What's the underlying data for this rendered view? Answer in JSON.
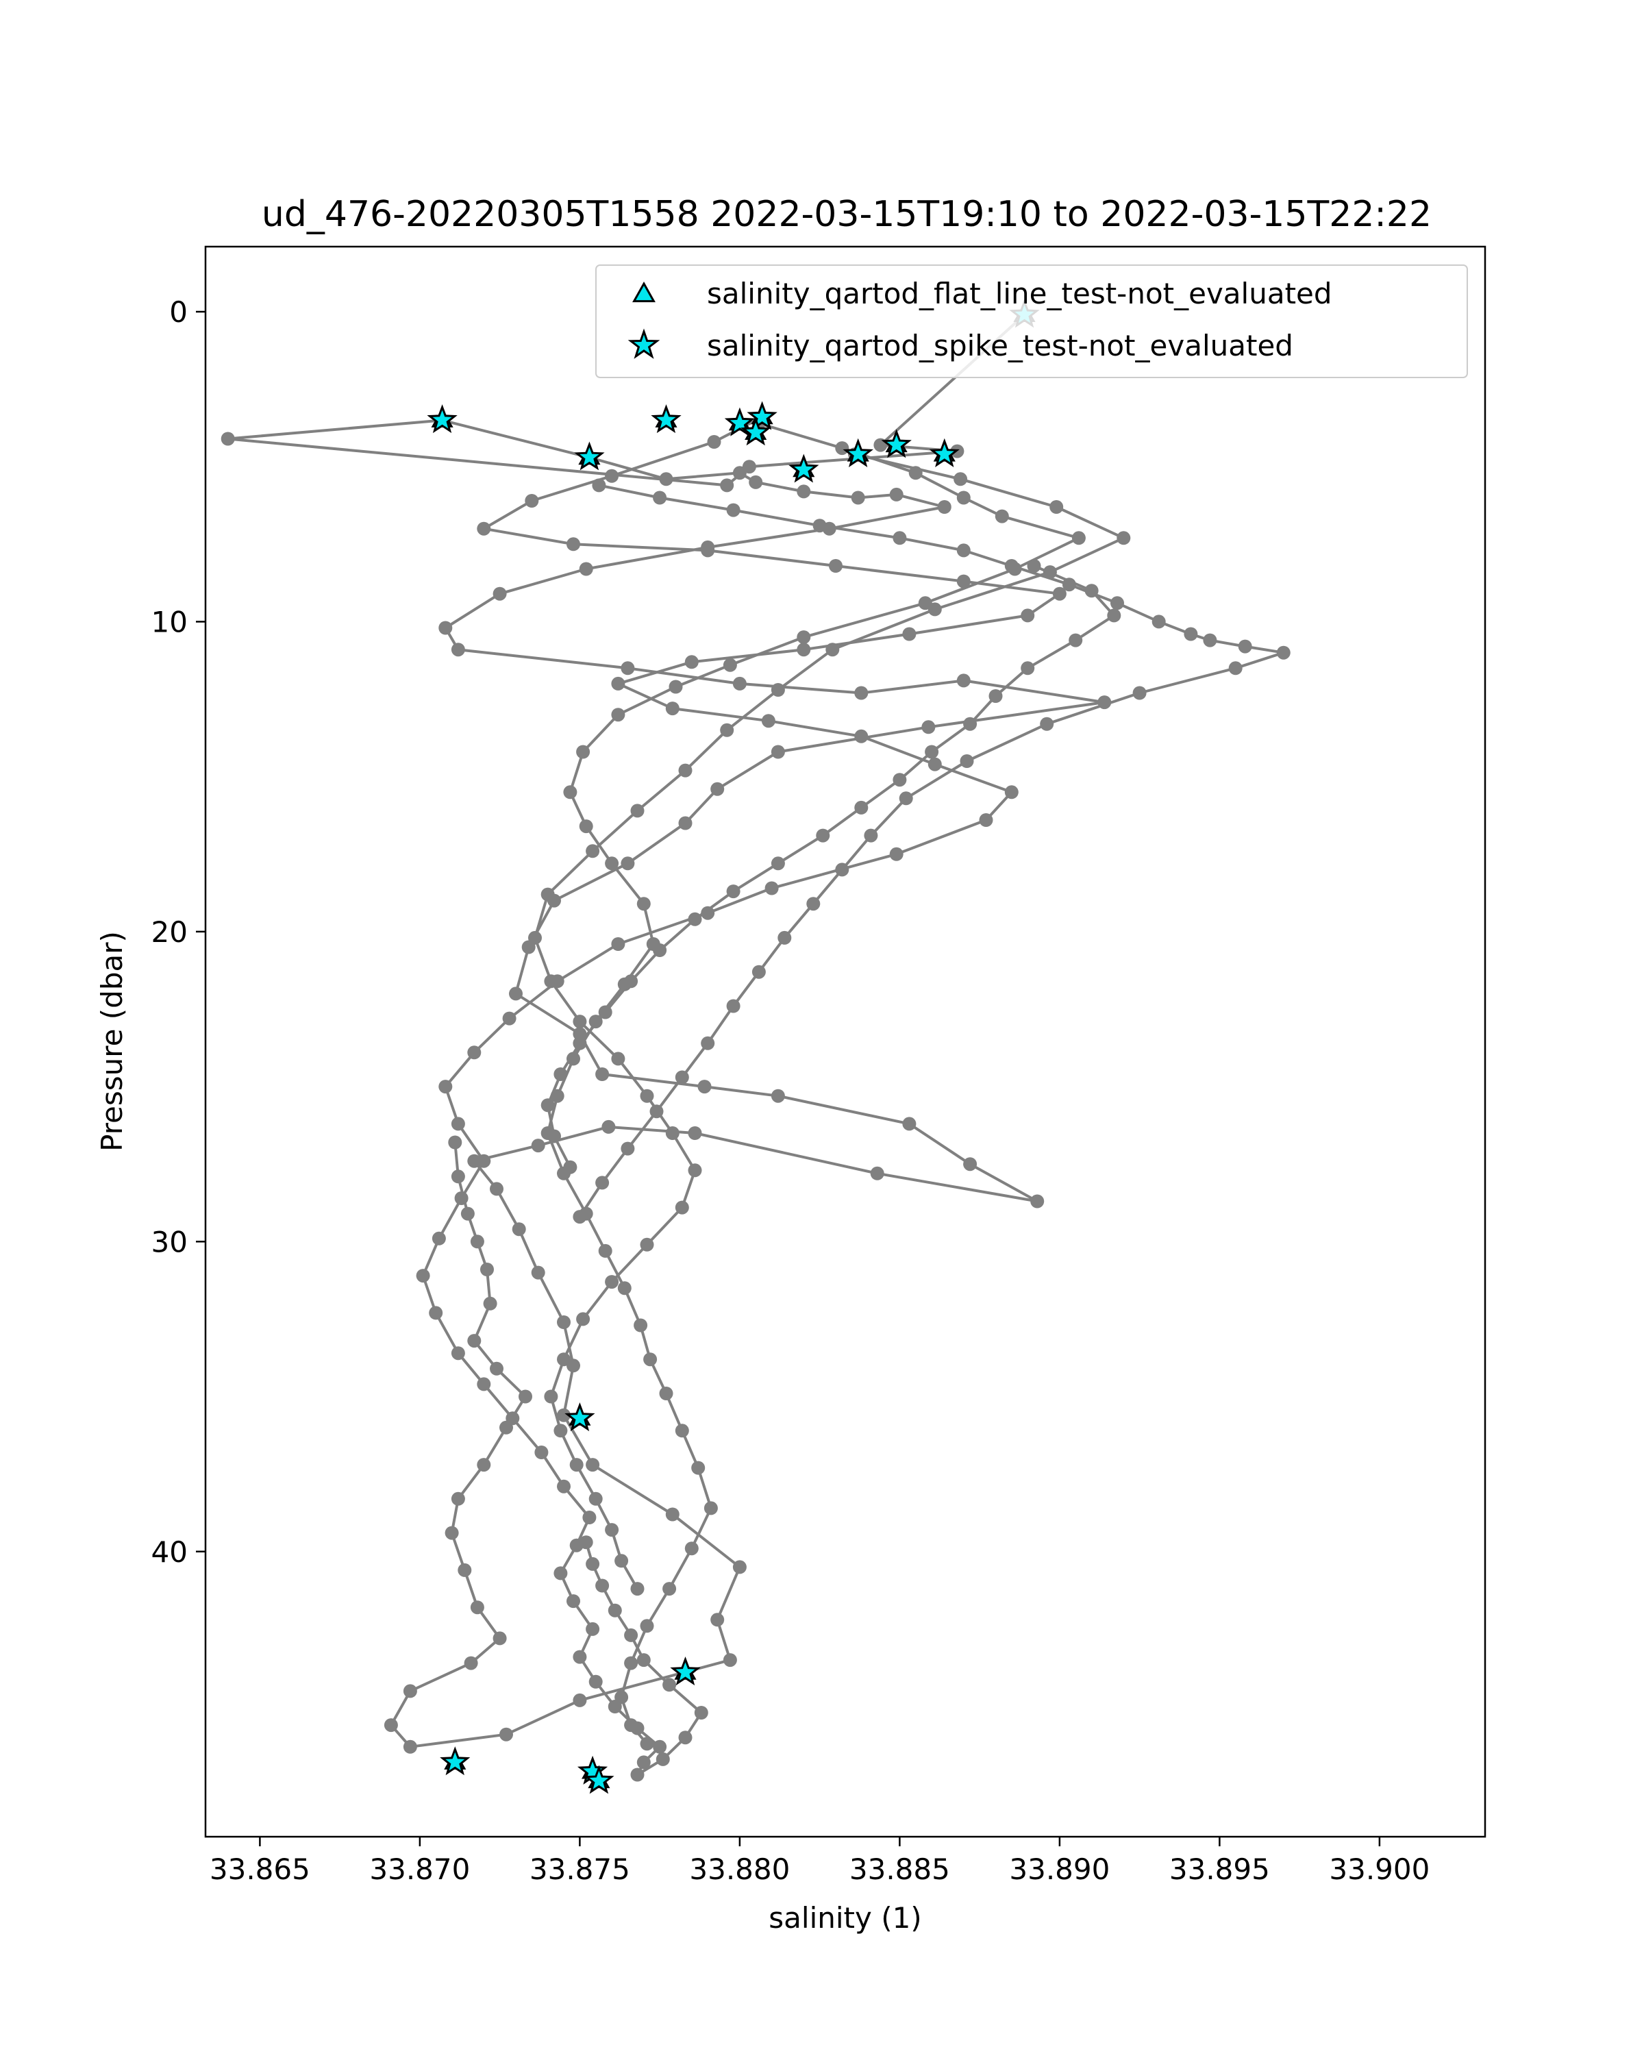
{
  "chart_data": {
    "type": "line",
    "title": "ud_476-20220305T1558 2022-03-15T19:10 to 2022-03-15T22:22",
    "xlabel": "salinity (1)",
    "ylabel": "Pressure (dbar)",
    "xlim": [
      33.8633,
      33.9033
    ],
    "ylim": [
      49.2,
      -2.1
    ],
    "y_inverted": true,
    "x_ticks": [
      "33.865",
      "33.870",
      "33.875",
      "33.880",
      "33.885",
      "33.890",
      "33.895",
      "33.900"
    ],
    "y_ticks": [
      "0",
      "10",
      "20",
      "30",
      "40"
    ],
    "grid": false,
    "legend_position": "top-right",
    "colors": {
      "profile": "#808080",
      "marker_fill": "#00e5ee",
      "marker_edge": "#000000"
    },
    "legend": [
      {
        "label": "salinity_qartod_flat_line_test-not_evaluated",
        "marker": "triangle"
      },
      {
        "label": "salinity_qartod_spike_test-not_evaluated",
        "marker": "star"
      }
    ],
    "series": [
      {
        "name": "",
        "x": [
          33.8889,
          33.8844,
          33.8868,
          33.8803,
          33.8796,
          33.864,
          33.8707,
          33.8753,
          33.8777,
          33.88,
          33.8805,
          33.882,
          33.8837,
          33.8849,
          33.8864,
          33.8828,
          33.879,
          33.8752,
          33.8725,
          33.8708,
          33.8712,
          33.8765,
          33.88,
          33.8838,
          33.887,
          33.8914,
          33.8859,
          33.8812,
          33.8793,
          33.8783,
          33.8765,
          33.8742,
          33.8734,
          33.873,
          33.875,
          33.8757,
          33.8789,
          33.8812,
          33.8853,
          33.8872,
          33.8893,
          33.8843,
          33.8786,
          33.8759,
          33.8737,
          33.8717,
          33.8724,
          33.8731,
          33.8737,
          33.8745,
          33.8748,
          33.8745,
          33.8754,
          33.8779,
          33.88,
          33.8793,
          33.8797,
          33.875,
          33.8727,
          33.8697,
          33.8691,
          33.8697,
          33.8716,
          33.8725,
          33.8718,
          33.8714,
          33.871,
          33.8712,
          33.872,
          33.8727,
          33.8733,
          33.8724,
          33.8717,
          33.8722,
          33.8721,
          33.8718,
          33.8715,
          33.8712,
          33.8711
        ],
        "y": [
          0.1,
          4.3,
          4.5,
          5.0,
          5.6,
          4.1,
          3.5,
          4.7,
          5.4,
          5.2,
          5.5,
          5.8,
          6.0,
          5.9,
          6.3,
          7.0,
          7.6,
          8.3,
          9.1,
          10.2,
          10.9,
          11.5,
          12.0,
          12.3,
          11.9,
          12.6,
          13.4,
          14.2,
          15.4,
          16.5,
          17.8,
          19.0,
          20.5,
          22.0,
          23.3,
          24.6,
          25.0,
          25.3,
          26.2,
          27.5,
          28.7,
          27.8,
          26.5,
          26.3,
          26.9,
          27.4,
          28.3,
          29.6,
          31.0,
          32.6,
          34.0,
          35.6,
          37.2,
          38.8,
          40.5,
          42.2,
          43.5,
          44.8,
          45.9,
          46.3,
          45.6,
          44.5,
          43.6,
          42.8,
          41.8,
          40.6,
          39.4,
          38.3,
          37.2,
          36.0,
          35.0,
          34.1,
          33.2,
          32.0,
          30.9,
          30.0,
          29.1,
          27.9,
          26.8
        ]
      },
      {
        "name": "",
        "x": [
          33.8807,
          33.8792,
          33.876,
          33.8735,
          33.872,
          33.8748,
          33.879,
          33.883,
          33.887,
          33.89,
          33.889,
          33.8853,
          33.882,
          33.8785,
          33.8762,
          33.8779,
          33.8809,
          33.8838,
          33.8861,
          33.8885,
          33.8877,
          33.8849,
          33.881,
          33.879,
          33.8762,
          33.8743,
          33.8728,
          33.8717,
          33.8708,
          33.8712,
          33.872,
          33.8713,
          33.8706,
          33.8701,
          33.8705,
          33.8712,
          33.872,
          33.8729,
          33.8738,
          33.8745,
          33.8753,
          33.8749,
          33.8744,
          33.8748,
          33.8754,
          33.875,
          33.8755,
          33.8761,
          33.8768,
          33.8775,
          33.877,
          33.8768,
          33.8776,
          33.8783,
          33.8788,
          33.8778,
          33.877,
          33.8766,
          33.8761,
          33.8757,
          33.8754,
          33.8752
        ],
        "y": [
          3.4,
          4.2,
          5.3,
          6.1,
          7.0,
          7.5,
          7.7,
          8.2,
          8.7,
          9.1,
          9.8,
          10.4,
          10.9,
          11.3,
          12.0,
          12.8,
          13.2,
          13.7,
          14.6,
          15.5,
          16.4,
          17.5,
          18.6,
          19.4,
          20.4,
          21.6,
          22.8,
          23.9,
          25.0,
          26.2,
          27.4,
          28.6,
          29.9,
          31.1,
          32.3,
          33.6,
          34.6,
          35.7,
          36.8,
          37.9,
          38.9,
          39.8,
          40.7,
          41.6,
          42.5,
          43.4,
          44.2,
          45.0,
          45.7,
          46.3,
          46.8,
          47.2,
          46.7,
          46.0,
          45.2,
          44.3,
          43.5,
          42.7,
          41.9,
          41.1,
          40.4,
          39.7
        ]
      },
      {
        "name": "",
        "x": [
          33.8806,
          33.8832,
          33.8855,
          33.887,
          33.8882,
          33.8906,
          33.8886,
          33.8858,
          33.882,
          33.8797,
          33.878,
          33.8762,
          33.8751,
          33.8747,
          33.8752,
          33.876,
          33.877,
          33.8773,
          33.8764,
          33.8755,
          33.8748,
          33.8743,
          33.874,
          33.8745,
          33.8752,
          33.8758,
          33.8764,
          33.8769,
          33.8772,
          33.8777,
          33.8782,
          33.8787,
          33.8791,
          33.8785,
          33.8778,
          33.8771,
          33.8766,
          33.8763,
          33.8766,
          33.8771
        ],
        "y": [
          3.6,
          4.4,
          5.2,
          6.0,
          6.6,
          7.3,
          8.3,
          9.4,
          10.5,
          11.4,
          12.1,
          13.0,
          14.2,
          15.5,
          16.6,
          17.8,
          19.1,
          20.4,
          21.7,
          22.9,
          24.1,
          25.3,
          26.5,
          27.8,
          29.1,
          30.3,
          31.5,
          32.7,
          33.8,
          34.9,
          36.1,
          37.3,
          38.6,
          39.9,
          41.2,
          42.4,
          43.6,
          44.7,
          45.6,
          46.2
        ]
      },
      {
        "name": "",
        "x": [
          33.8836,
          33.8869,
          33.8899,
          33.892,
          33.8897,
          33.8861,
          33.8829,
          33.8812,
          33.8796,
          33.8783,
          33.8768,
          33.8754,
          33.874,
          33.8736,
          33.8741,
          33.875,
          33.8762,
          33.8771,
          33.8779,
          33.8786,
          33.8782,
          33.8771,
          33.876,
          33.8751,
          33.8745,
          33.8741,
          33.8744,
          33.8749,
          33.8755,
          33.876,
          33.8763,
          33.8768
        ],
        "y": [
          4.6,
          5.4,
          6.3,
          7.3,
          8.4,
          9.6,
          10.9,
          12.2,
          13.5,
          14.8,
          16.1,
          17.4,
          18.8,
          20.2,
          21.6,
          22.9,
          24.1,
          25.3,
          26.5,
          27.7,
          28.9,
          30.1,
          31.3,
          32.5,
          33.8,
          35.0,
          36.1,
          37.2,
          38.3,
          39.3,
          40.3,
          41.2
        ]
      },
      {
        "name": "",
        "x": [
          33.8756,
          33.8775,
          33.8798,
          33.8825,
          33.885,
          33.887,
          33.8885,
          33.8903,
          33.8918,
          33.8931,
          33.8941,
          33.8947,
          33.8958,
          33.897,
          33.8955,
          33.8925,
          33.8896,
          33.8871,
          33.8852,
          33.8841,
          33.8832,
          33.8823,
          33.8814,
          33.8806,
          33.8798,
          33.879,
          33.8782,
          33.8774,
          33.8765,
          33.8757,
          33.875
        ],
        "y": [
          5.6,
          6.0,
          6.4,
          6.9,
          7.3,
          7.7,
          8.2,
          8.8,
          9.4,
          10.0,
          10.4,
          10.6,
          10.8,
          11.0,
          11.5,
          12.3,
          13.3,
          14.5,
          15.7,
          16.9,
          18.0,
          19.1,
          20.2,
          21.3,
          22.4,
          23.6,
          24.7,
          25.8,
          27.0,
          28.1,
          29.2
        ]
      },
      {
        "name": "",
        "x": [
          33.8892,
          33.891,
          33.8917,
          33.8905,
          33.889,
          33.888,
          33.8872,
          33.886,
          33.885,
          33.8838,
          33.8826,
          33.8812,
          33.8798,
          33.8786,
          33.8775,
          33.8766,
          33.8758,
          33.875,
          33.8744,
          33.874,
          33.8742,
          33.8747
        ],
        "y": [
          8.2,
          9.0,
          9.8,
          10.6,
          11.5,
          12.4,
          13.3,
          14.2,
          15.1,
          16.0,
          16.9,
          17.8,
          18.7,
          19.6,
          20.6,
          21.6,
          22.6,
          23.6,
          24.6,
          25.6,
          26.6,
          27.6
        ]
      }
    ],
    "spike_test_markers": {
      "x": [
        33.8889,
        33.8707,
        33.8777,
        33.88,
        33.8807,
        33.8805,
        33.8753,
        33.882,
        33.8837,
        33.8849,
        33.8864,
        33.875,
        33.8783,
        33.8711,
        33.8754,
        33.8756
      ],
      "y": [
        0.1,
        3.5,
        3.5,
        3.6,
        3.4,
        3.9,
        4.7,
        5.1,
        4.6,
        4.3,
        4.6,
        35.7,
        43.9,
        46.8,
        47.1,
        47.4
      ]
    },
    "flat_line_test_markers": {
      "x": [
        33.8889,
        33.8707,
        33.8777,
        33.88,
        33.8807,
        33.8805,
        33.8753,
        33.882,
        33.8837,
        33.8849,
        33.8864,
        33.875,
        33.8783,
        33.8711,
        33.8754,
        33.8756
      ],
      "y": [
        0.1,
        3.5,
        3.5,
        3.6,
        3.4,
        3.9,
        4.7,
        5.1,
        4.6,
        4.3,
        4.6,
        35.7,
        43.9,
        46.8,
        47.1,
        47.4
      ]
    }
  }
}
